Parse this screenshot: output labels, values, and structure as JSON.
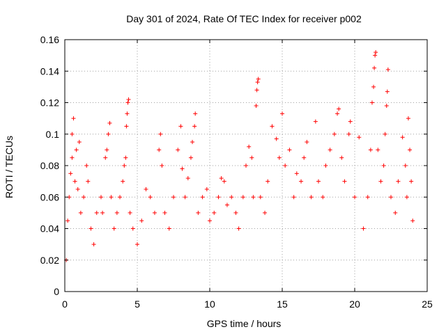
{
  "chart_data": {
    "type": "scatter",
    "title": "Day 301 of 2024, Rate Of TEC Index for receiver p002",
    "xlabel": "GPS time / hours",
    "ylabel": "ROTI / TECUs",
    "xlim": [
      0,
      25
    ],
    "ylim": [
      0,
      0.16
    ],
    "xticks": [
      0,
      5,
      10,
      15,
      20,
      25
    ],
    "xtick_labels": [
      "0",
      "5",
      "10",
      "15",
      "20",
      "25"
    ],
    "yticks": [
      0,
      0.02,
      0.04,
      0.06,
      0.08,
      0.1,
      0.12,
      0.14,
      0.16
    ],
    "ytick_labels": [
      "0",
      "0.02",
      "0.04",
      "0.06",
      "0.08",
      "0.1",
      "0.12",
      "0.14",
      "0.16"
    ],
    "grid": true,
    "marker": "+",
    "marker_color": "#ff0000",
    "series": [
      {
        "points": [
          [
            0.1,
            0.02
          ],
          [
            0.2,
            0.045
          ],
          [
            0.3,
            0.06
          ],
          [
            0.4,
            0.075
          ],
          [
            0.5,
            0.085
          ],
          [
            0.5,
            0.1
          ],
          [
            0.6,
            0.11
          ],
          [
            0.7,
            0.07
          ],
          [
            0.8,
            0.09
          ],
          [
            0.9,
            0.065
          ],
          [
            1.0,
            0.095
          ],
          [
            1.1,
            0.05
          ],
          [
            1.3,
            0.06
          ],
          [
            1.5,
            0.08
          ],
          [
            1.6,
            0.07
          ],
          [
            1.8,
            0.04
          ],
          [
            2.0,
            0.03
          ],
          [
            2.2,
            0.05
          ],
          [
            2.5,
            0.06
          ],
          [
            2.6,
            0.05
          ],
          [
            2.8,
            0.085
          ],
          [
            2.9,
            0.09
          ],
          [
            3.0,
            0.1
          ],
          [
            3.1,
            0.107
          ],
          [
            3.2,
            0.06
          ],
          [
            3.4,
            0.04
          ],
          [
            3.6,
            0.05
          ],
          [
            3.8,
            0.06
          ],
          [
            4.0,
            0.07
          ],
          [
            4.1,
            0.08
          ],
          [
            4.2,
            0.085
          ],
          [
            4.25,
            0.105
          ],
          [
            4.3,
            0.113
          ],
          [
            4.35,
            0.12
          ],
          [
            4.4,
            0.122
          ],
          [
            4.5,
            0.05
          ],
          [
            4.7,
            0.04
          ],
          [
            5.0,
            0.03
          ],
          [
            5.3,
            0.045
          ],
          [
            5.6,
            0.065
          ],
          [
            5.9,
            0.06
          ],
          [
            6.2,
            0.05
          ],
          [
            6.5,
            0.09
          ],
          [
            6.6,
            0.1
          ],
          [
            6.7,
            0.08
          ],
          [
            6.9,
            0.05
          ],
          [
            7.2,
            0.04
          ],
          [
            7.5,
            0.06
          ],
          [
            7.8,
            0.09
          ],
          [
            8.0,
            0.105
          ],
          [
            8.1,
            0.078
          ],
          [
            8.3,
            0.06
          ],
          [
            8.5,
            0.072
          ],
          [
            8.7,
            0.085
          ],
          [
            8.8,
            0.095
          ],
          [
            8.95,
            0.105
          ],
          [
            9.0,
            0.113
          ],
          [
            9.2,
            0.05
          ],
          [
            9.5,
            0.06
          ],
          [
            9.8,
            0.065
          ],
          [
            10.0,
            0.045
          ],
          [
            10.3,
            0.05
          ],
          [
            10.6,
            0.06
          ],
          [
            10.8,
            0.072
          ],
          [
            11.0,
            0.07
          ],
          [
            11.2,
            0.055
          ],
          [
            11.5,
            0.06
          ],
          [
            11.8,
            0.05
          ],
          [
            12.0,
            0.04
          ],
          [
            12.3,
            0.06
          ],
          [
            12.5,
            0.08
          ],
          [
            12.7,
            0.092
          ],
          [
            12.9,
            0.085
          ],
          [
            13.0,
            0.06
          ],
          [
            13.2,
            0.118
          ],
          [
            13.25,
            0.128
          ],
          [
            13.3,
            0.133
          ],
          [
            13.35,
            0.135
          ],
          [
            13.5,
            0.06
          ],
          [
            13.8,
            0.05
          ],
          [
            14.0,
            0.07
          ],
          [
            14.3,
            0.105
          ],
          [
            14.6,
            0.097
          ],
          [
            14.8,
            0.085
          ],
          [
            15.0,
            0.113
          ],
          [
            15.2,
            0.08
          ],
          [
            15.5,
            0.09
          ],
          [
            15.8,
            0.06
          ],
          [
            16.0,
            0.075
          ],
          [
            16.3,
            0.07
          ],
          [
            16.5,
            0.085
          ],
          [
            16.7,
            0.095
          ],
          [
            17.0,
            0.06
          ],
          [
            17.3,
            0.108
          ],
          [
            17.5,
            0.07
          ],
          [
            17.8,
            0.06
          ],
          [
            18.0,
            0.08
          ],
          [
            18.3,
            0.09
          ],
          [
            18.6,
            0.1
          ],
          [
            18.8,
            0.113
          ],
          [
            18.9,
            0.116
          ],
          [
            19.1,
            0.085
          ],
          [
            19.3,
            0.07
          ],
          [
            19.6,
            0.1
          ],
          [
            19.7,
            0.108
          ],
          [
            20.0,
            0.06
          ],
          [
            20.3,
            0.098
          ],
          [
            20.6,
            0.04
          ],
          [
            20.9,
            0.06
          ],
          [
            21.1,
            0.09
          ],
          [
            21.2,
            0.12
          ],
          [
            21.3,
            0.13
          ],
          [
            21.35,
            0.142
          ],
          [
            21.4,
            0.15
          ],
          [
            21.45,
            0.152
          ],
          [
            21.6,
            0.09
          ],
          [
            21.8,
            0.07
          ],
          [
            22.0,
            0.08
          ],
          [
            22.1,
            0.1
          ],
          [
            22.2,
            0.118
          ],
          [
            22.25,
            0.127
          ],
          [
            22.3,
            0.141
          ],
          [
            22.5,
            0.06
          ],
          [
            22.8,
            0.05
          ],
          [
            23.0,
            0.07
          ],
          [
            23.3,
            0.098
          ],
          [
            23.5,
            0.08
          ],
          [
            23.6,
            0.06
          ],
          [
            23.7,
            0.11
          ],
          [
            23.8,
            0.09
          ],
          [
            23.9,
            0.07
          ],
          [
            24.0,
            0.045
          ]
        ]
      }
    ]
  }
}
